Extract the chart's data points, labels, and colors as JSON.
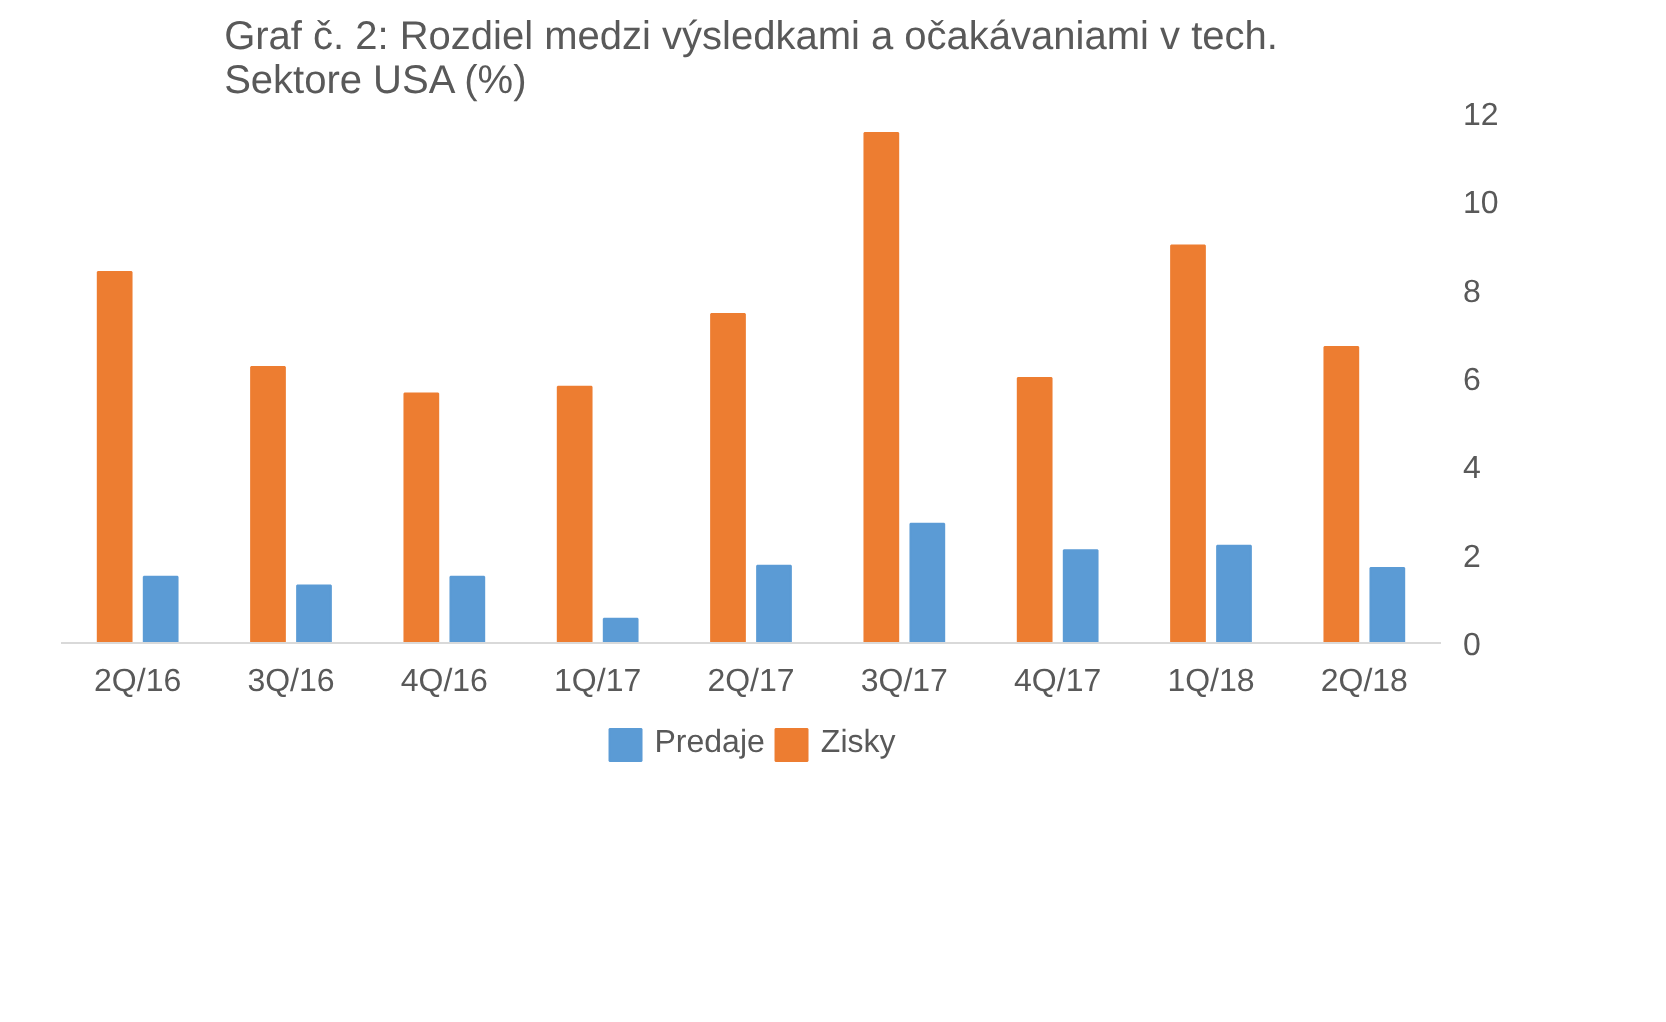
{
  "chart_data": {
    "type": "bar",
    "title": "Graf č. 2: Rozdiel medzi výsledkami a očakávaniami v tech.\nSektore USA (%)",
    "categories": [
      "2Q/16",
      "3Q/16",
      "4Q/16",
      "1Q/17",
      "2Q/17",
      "3Q/17",
      "4Q/17",
      "1Q/18",
      "2Q/18"
    ],
    "series": [
      {
        "name": "Predaje",
        "color": "#5b9bd5",
        "values": [
          1.5,
          1.3,
          1.5,
          0.55,
          1.75,
          2.7,
          2.1,
          2.2,
          1.7
        ]
      },
      {
        "name": "Zisky",
        "color": "#ed7d31",
        "values": [
          8.4,
          6.25,
          5.65,
          5.8,
          7.45,
          11.55,
          6.0,
          9.0,
          6.7
        ]
      }
    ],
    "ylim": [
      0,
      12
    ],
    "yticks": [
      0,
      2,
      4,
      6,
      8,
      10,
      12
    ],
    "grid": false,
    "legend": "bottom"
  }
}
